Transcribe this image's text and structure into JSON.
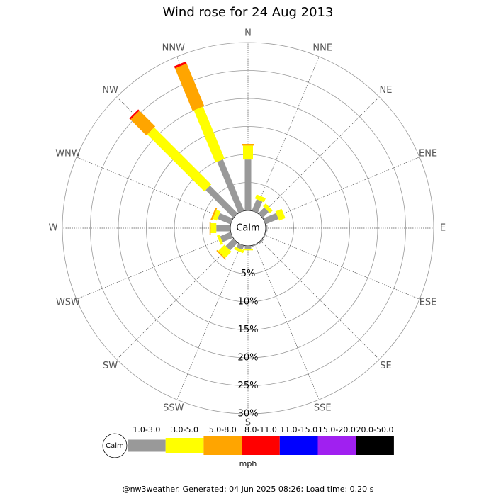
{
  "chart_data": {
    "type": "windrose",
    "title": "Wind rose for 24 Aug 2013",
    "categories": [
      "N",
      "NNE",
      "NE",
      "ENE",
      "E",
      "ESE",
      "SE",
      "SSE",
      "S",
      "SSW",
      "SW",
      "WSW",
      "W",
      "WNW",
      "NW",
      "NNW"
    ],
    "calm_label": "Calm",
    "units_label": "mph",
    "footer": "@nw3weather. Generated: 04 Jun 2025 08:26; Load time: 0.20 s",
    "rlim": [
      0,
      30
    ],
    "rticks": [
      {
        "value": 5,
        "label": "5%"
      },
      {
        "value": 10,
        "label": "10%"
      },
      {
        "value": 15,
        "label": "15%"
      },
      {
        "value": 20,
        "label": "20%"
      },
      {
        "value": 25,
        "label": "25%"
      },
      {
        "value": 30,
        "label": "30%"
      }
    ],
    "series": [
      {
        "name": "1.0-3.0",
        "color": "#999999",
        "values": [
          9.1,
          2.2,
          1.5,
          2.5,
          0.3,
          0.2,
          0.3,
          0.2,
          0.5,
          0.8,
          1.9,
          2.0,
          2.5,
          2.5,
          7.0,
          9.9
        ]
      },
      {
        "name": "3.0-5.0",
        "color": "#ffff00",
        "values": [
          2.5,
          0.8,
          0.7,
          1.2,
          0,
          0,
          0,
          0,
          0.3,
          0.5,
          1.6,
          0.5,
          1.0,
          0.8,
          14.4,
          10.1
        ]
      },
      {
        "name": "5.0-8.0",
        "color": "#ffa500",
        "values": [
          0.3,
          0,
          0,
          0,
          0,
          0,
          0,
          0,
          0,
          0,
          0.2,
          0,
          0.2,
          0.3,
          4.0,
          8.2
        ]
      },
      {
        "name": "8.0-11.0",
        "color": "#ff0000",
        "values": [
          0,
          0,
          0,
          0,
          0,
          0,
          0,
          0,
          0,
          0,
          0,
          0,
          0,
          0,
          0.3,
          0.4
        ]
      },
      {
        "name": "11.0-15.0",
        "color": "#0000ff",
        "values": [
          0,
          0,
          0,
          0,
          0,
          0,
          0,
          0,
          0,
          0,
          0,
          0,
          0,
          0,
          0,
          0
        ]
      },
      {
        "name": "15.0-20.0",
        "color": "#a020f0",
        "values": [
          0,
          0,
          0,
          0,
          0,
          0,
          0,
          0,
          0,
          0,
          0,
          0,
          0,
          0,
          0,
          0
        ]
      },
      {
        "name": "20.0-50.0",
        "color": "#000000",
        "values": [
          0,
          0,
          0,
          0,
          0,
          0,
          0,
          0,
          0,
          0,
          0,
          0,
          0,
          0,
          0,
          0
        ]
      }
    ]
  }
}
